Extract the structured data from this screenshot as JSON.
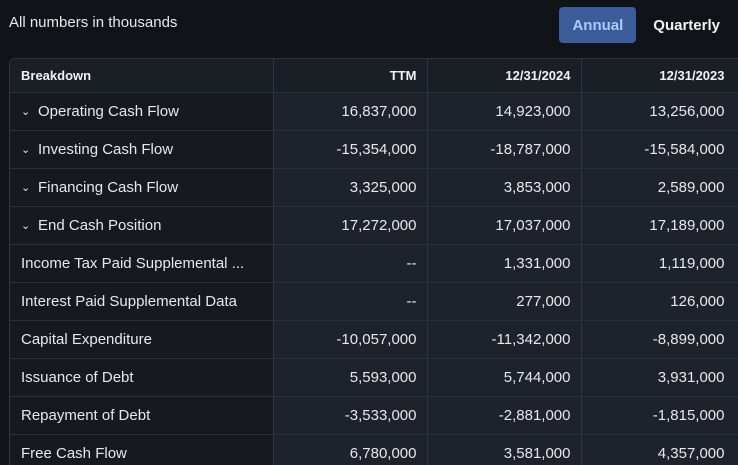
{
  "note": "All numbers in thousands",
  "toggle": {
    "annual": "Annual",
    "quarterly": "Quarterly"
  },
  "table": {
    "headers": [
      "Breakdown",
      "TTM",
      "12/31/2024",
      "12/31/2023"
    ],
    "rows": [
      {
        "label": "Operating Cash Flow",
        "expandable": true,
        "values": [
          "16,837,000",
          "14,923,000",
          "13,256,000"
        ]
      },
      {
        "label": "Investing Cash Flow",
        "expandable": true,
        "values": [
          "-15,354,000",
          "-18,787,000",
          "-15,584,000"
        ]
      },
      {
        "label": "Financing Cash Flow",
        "expandable": true,
        "values": [
          "3,325,000",
          "3,853,000",
          "2,589,000"
        ]
      },
      {
        "label": "End Cash Position",
        "expandable": true,
        "values": [
          "17,272,000",
          "17,037,000",
          "17,189,000"
        ]
      },
      {
        "label": "Income Tax Paid Supplemental ...",
        "expandable": false,
        "values": [
          "--",
          "1,331,000",
          "1,119,000"
        ]
      },
      {
        "label": "Interest Paid Supplemental Data",
        "expandable": false,
        "values": [
          "--",
          "277,000",
          "126,000"
        ]
      },
      {
        "label": "Capital Expenditure",
        "expandable": false,
        "values": [
          "-10,057,000",
          "-11,342,000",
          "-8,899,000"
        ]
      },
      {
        "label": "Issuance of Debt",
        "expandable": false,
        "values": [
          "5,593,000",
          "5,744,000",
          "3,931,000"
        ]
      },
      {
        "label": "Repayment of Debt",
        "expandable": false,
        "values": [
          "-3,533,000",
          "-2,881,000",
          "-1,815,000"
        ]
      },
      {
        "label": "Free Cash Flow",
        "expandable": false,
        "values": [
          "6,780,000",
          "3,581,000",
          "4,357,000"
        ]
      }
    ]
  }
}
